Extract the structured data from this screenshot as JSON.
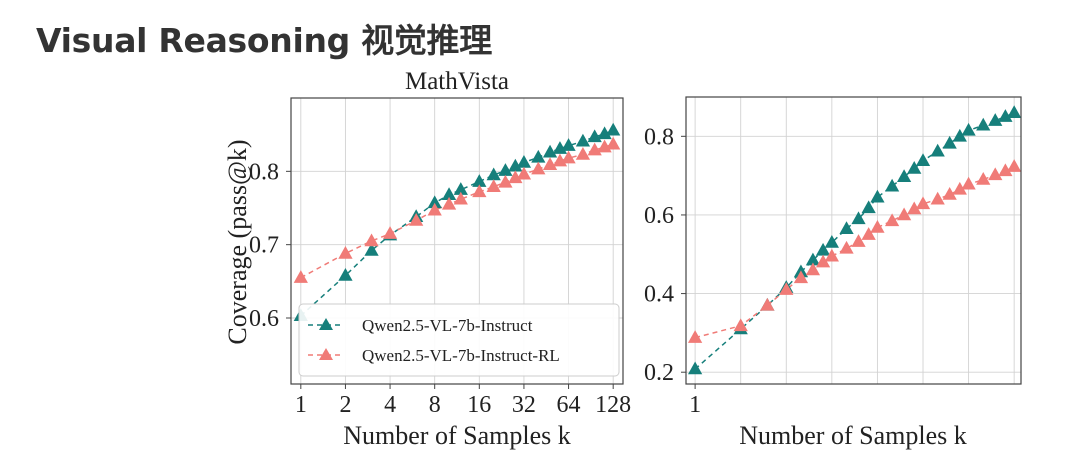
{
  "slide": {
    "title": "Visual Reasoning 视觉推理"
  },
  "colors": {
    "teal": "#167f7b",
    "salmon": "#f07b77",
    "grid": "#d2d2d2",
    "axis": "#444444",
    "text": "#222222"
  },
  "chart_data": [
    {
      "type": "line",
      "title": "MathVista",
      "xlabel": "Number of Samples k",
      "ylabel": "Coverage (pass@k)",
      "x_scale": "log2",
      "x_ticks": [
        "1",
        "2",
        "4",
        "8",
        "16",
        "32",
        "64",
        "128"
      ],
      "y_ticks": [
        "0.6",
        "0.7",
        "0.8"
      ],
      "ylim": [
        0.51,
        0.9
      ],
      "grid": true,
      "legend_position": "lower-left",
      "series": [
        {
          "name": "Qwen2.5-VL-7b-Instruct",
          "color": "#167f7b",
          "marker": "triangle",
          "x": [
            1,
            2,
            3,
            4,
            6,
            8,
            10,
            12,
            16,
            20,
            24,
            28,
            32,
            40,
            48,
            56,
            64,
            80,
            96,
            112,
            128
          ],
          "y": [
            0.603,
            0.658,
            0.692,
            0.713,
            0.738,
            0.757,
            0.768,
            0.775,
            0.786,
            0.795,
            0.801,
            0.807,
            0.812,
            0.819,
            0.826,
            0.831,
            0.835,
            0.841,
            0.847,
            0.851,
            0.856
          ]
        },
        {
          "name": "Qwen2.5-VL-7b-Instruct-RL",
          "color": "#f07b77",
          "marker": "triangle",
          "x": [
            1,
            2,
            3,
            4,
            6,
            8,
            10,
            12,
            16,
            20,
            24,
            28,
            32,
            40,
            48,
            56,
            64,
            80,
            96,
            112,
            128
          ],
          "y": [
            0.655,
            0.688,
            0.705,
            0.715,
            0.733,
            0.747,
            0.755,
            0.762,
            0.772,
            0.779,
            0.785,
            0.791,
            0.796,
            0.803,
            0.809,
            0.814,
            0.818,
            0.823,
            0.829,
            0.833,
            0.837
          ]
        }
      ]
    },
    {
      "type": "line",
      "title": "",
      "xlabel": "Number of Samples k",
      "ylabel": "",
      "x_scale": "log2",
      "x_ticks": [
        "1"
      ],
      "y_ticks": [
        "0.2",
        "0.4",
        "0.6",
        "0.8"
      ],
      "ylim": [
        0.17,
        0.9
      ],
      "grid": true,
      "series": [
        {
          "color": "#167f7b",
          "marker": "triangle",
          "x": [
            1,
            2,
            3,
            4,
            5,
            6,
            7,
            8,
            10,
            12,
            14,
            16,
            20,
            24,
            28,
            32,
            40,
            48,
            56,
            64,
            80,
            96,
            112,
            128
          ],
          "y": [
            0.208,
            0.31,
            0.37,
            0.415,
            0.455,
            0.485,
            0.51,
            0.53,
            0.565,
            0.59,
            0.618,
            0.645,
            0.673,
            0.697,
            0.718,
            0.738,
            0.762,
            0.782,
            0.8,
            0.815,
            0.828,
            0.84,
            0.85,
            0.86
          ]
        },
        {
          "color": "#f07b77",
          "marker": "triangle",
          "x": [
            1,
            2,
            3,
            4,
            5,
            6,
            7,
            8,
            10,
            12,
            14,
            16,
            20,
            24,
            28,
            32,
            40,
            48,
            56,
            64,
            80,
            96,
            112,
            128
          ],
          "y": [
            0.288,
            0.318,
            0.37,
            0.41,
            0.44,
            0.46,
            0.48,
            0.495,
            0.515,
            0.532,
            0.55,
            0.568,
            0.585,
            0.6,
            0.615,
            0.628,
            0.64,
            0.652,
            0.665,
            0.678,
            0.69,
            0.702,
            0.712,
            0.723
          ]
        }
      ]
    }
  ]
}
